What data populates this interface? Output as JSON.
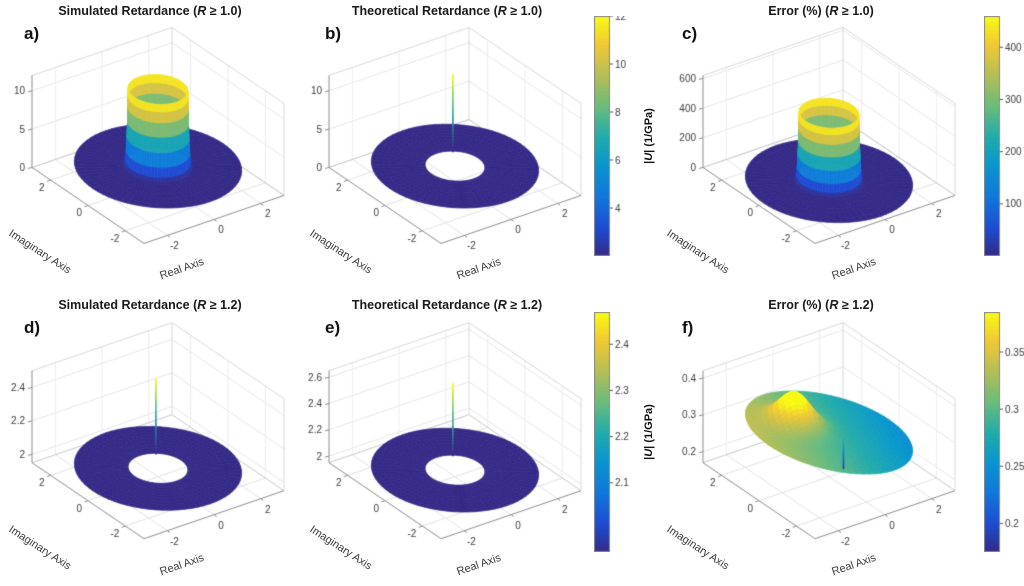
{
  "chart_data": {
    "type": "3d-surface-grid",
    "colormap": {
      "name": "parula",
      "stops": [
        {
          "t": 0.0,
          "c": "#352a87"
        },
        {
          "t": 0.12,
          "c": "#1e4dd3"
        },
        {
          "t": 0.25,
          "c": "#1178dc"
        },
        {
          "t": 0.38,
          "c": "#0997cf"
        },
        {
          "t": 0.5,
          "c": "#23acaa"
        },
        {
          "t": 0.62,
          "c": "#68bc7e"
        },
        {
          "t": 0.75,
          "c": "#b4be59"
        },
        {
          "t": 0.88,
          "c": "#f0c934"
        },
        {
          "t": 1.0,
          "c": "#f9fb14"
        }
      ]
    },
    "panels": [
      {
        "letter": "a)",
        "title_pre": "Simulated Retardance (",
        "title_r": "R",
        "title_post": " ≥ 1.0)",
        "xlabel": "Real Axis",
        "ylabel": "Imaginary Axis",
        "xticks": [
          {
            "v": -2,
            "t": "-2"
          },
          {
            "v": 0,
            "t": "0"
          },
          {
            "v": 2,
            "t": "2"
          }
        ],
        "yticks": [
          {
            "v": -2,
            "t": "-2"
          },
          {
            "v": 0,
            "t": "0"
          },
          {
            "v": 2,
            "t": "2"
          }
        ],
        "zticks": [
          {
            "v": 0,
            "t": "0"
          },
          {
            "v": 5,
            "t": "5"
          },
          {
            "v": 10,
            "t": "10"
          }
        ],
        "zlim": [
          0,
          12
        ],
        "clim": [
          2,
          12
        ],
        "surface": {
          "type": "annulus_wall",
          "r_inner": 1.0,
          "r_outer": 2.8,
          "base": 2.0,
          "peak": 12.0,
          "decay": 0.035
        }
      },
      {
        "letter": "b)",
        "title_pre": "Theoretical Retardance (",
        "title_r": "R",
        "title_post": " ≥ 1.0)",
        "xlabel": "Real Axis",
        "ylabel": "Imaginary Axis",
        "xticks": [
          {
            "v": -2,
            "t": "-2"
          },
          {
            "v": 0,
            "t": "0"
          },
          {
            "v": 2,
            "t": "2"
          }
        ],
        "yticks": [
          {
            "v": -2,
            "t": "-2"
          },
          {
            "v": 0,
            "t": "0"
          },
          {
            "v": 2,
            "t": "2"
          }
        ],
        "zticks": [
          {
            "v": 0,
            "t": "0"
          },
          {
            "v": 5,
            "t": "5"
          },
          {
            "v": 10,
            "t": "10"
          }
        ],
        "zlim": [
          0,
          12
        ],
        "clim": [
          2,
          12
        ],
        "surface": {
          "type": "annulus_flat_spike",
          "r_inner": 1.0,
          "r_outer": 2.8,
          "base": 2.0,
          "spike_peak": 12.0,
          "spike_x": 0.55,
          "spike_y": 0.8
        }
      },
      {
        "letter": "c)",
        "title_pre": "Error (%) (",
        "title_r": "R",
        "title_post": " ≥ 1.0)",
        "xlabel": "Real Axis",
        "ylabel": "Imaginary Axis",
        "xticks": [
          {
            "v": -2,
            "t": "-2"
          },
          {
            "v": 0,
            "t": "0"
          },
          {
            "v": 2,
            "t": "2"
          }
        ],
        "yticks": [
          {
            "v": -2,
            "t": "-2"
          },
          {
            "v": 0,
            "t": "0"
          },
          {
            "v": 2,
            "t": "2"
          }
        ],
        "zticks": [
          {
            "v": 0,
            "t": "0"
          },
          {
            "v": 200,
            "t": "200"
          },
          {
            "v": 400,
            "t": "400"
          },
          {
            "v": 600,
            "t": "600"
          }
        ],
        "zlim": [
          0,
          620
        ],
        "clim": [
          5,
          460
        ],
        "surface": {
          "type": "annulus_wall",
          "r_inner": 1.0,
          "r_outer": 2.8,
          "base": 5.0,
          "peak": 460.0,
          "decay": 0.035
        }
      },
      {
        "letter": "d)",
        "title_pre": "Simulated Retardance (",
        "title_r": "R",
        "title_post": " ≥ 1.2)",
        "xlabel": "Real Axis",
        "ylabel": "Imaginary Axis",
        "xticks": [
          {
            "v": -2,
            "t": "-2"
          },
          {
            "v": 0,
            "t": "0"
          },
          {
            "v": 2,
            "t": "2"
          }
        ],
        "yticks": [
          {
            "v": -2,
            "t": "-2"
          },
          {
            "v": 0,
            "t": "0"
          },
          {
            "v": 2,
            "t": "2"
          }
        ],
        "zticks": [
          {
            "v": 2,
            "t": "2"
          },
          {
            "v": 2.2,
            "t": "2.2"
          },
          {
            "v": 2.4,
            "t": "2.4"
          }
        ],
        "zlim": [
          1.95,
          2.5
        ],
        "clim": [
          2,
          2.45
        ],
        "surface": {
          "type": "annulus_flat_spike",
          "r_inner": 1.0,
          "r_outer": 2.8,
          "base": 2.0,
          "spike_peak": 2.45,
          "spike_x": 0.55,
          "spike_y": 0.8
        }
      },
      {
        "letter": "e)",
        "title_pre": "Theoretical Retardance (",
        "title_r": "R",
        "title_post": " ≥ 1.2)",
        "xlabel": "Real Axis",
        "ylabel": "Imaginary Axis",
        "xticks": [
          {
            "v": -2,
            "t": "-2"
          },
          {
            "v": 0,
            "t": "0"
          },
          {
            "v": 2,
            "t": "2"
          }
        ],
        "yticks": [
          {
            "v": -2,
            "t": "-2"
          },
          {
            "v": 0,
            "t": "0"
          },
          {
            "v": 2,
            "t": "2"
          }
        ],
        "zticks": [
          {
            "v": 2,
            "t": "2"
          },
          {
            "v": 2.2,
            "t": "2.2"
          },
          {
            "v": 2.4,
            "t": "2.4"
          },
          {
            "v": 2.6,
            "t": "2.6"
          }
        ],
        "zlim": [
          1.95,
          2.65
        ],
        "clim": [
          2,
          2.5
        ],
        "surface": {
          "type": "annulus_flat_spike",
          "r_inner": 1.0,
          "r_outer": 2.8,
          "base": 2.0,
          "spike_peak": 2.55,
          "spike_x": 0.55,
          "spike_y": 0.8
        }
      },
      {
        "letter": "f)",
        "title_pre": "Error (%) (",
        "title_r": "R",
        "title_post": " ≥ 1.2)",
        "xlabel": "Real Axis",
        "ylabel": "Imaginary Axis",
        "xticks": [
          {
            "v": -2,
            "t": "-2"
          },
          {
            "v": 0,
            "t": "0"
          },
          {
            "v": 2,
            "t": "2"
          }
        ],
        "yticks": [
          {
            "v": -2,
            "t": "-2"
          },
          {
            "v": 0,
            "t": "0"
          },
          {
            "v": 2,
            "t": "2"
          }
        ],
        "zticks": [
          {
            "v": 0.2,
            "t": "0.2"
          },
          {
            "v": 0.3,
            "t": "0.3"
          },
          {
            "v": 0.4,
            "t": "0.4"
          }
        ],
        "zlim": [
          0.17,
          0.42
        ],
        "clim": [
          0.19,
          0.37
        ],
        "surface": {
          "type": "tilted_disk",
          "r_outer": 2.8,
          "c0": 0.29,
          "gx": -0.013,
          "gy": 0.005,
          "bump": {
            "x": -0.8,
            "y": 0.8,
            "amp": 0.085,
            "sigma": 0.55
          },
          "dip": {
            "x": 0.3,
            "y": -0.4,
            "to": 0.2
          }
        }
      }
    ],
    "colorbars": [
      {
        "range": [
          2,
          12
        ],
        "ticks": [
          {
            "v": 4,
            "t": "4"
          },
          {
            "v": 6,
            "t": "6"
          },
          {
            "v": 8,
            "t": "8"
          },
          {
            "v": 10,
            "t": "10"
          },
          {
            "v": 12,
            "t": "12"
          }
        ],
        "label_pre": "|",
        "label_u": "U",
        "label_post": "| (1/GPa)"
      },
      {
        "range": [
          0,
          460
        ],
        "ticks": [
          {
            "v": 100,
            "t": "100"
          },
          {
            "v": 200,
            "t": "200"
          },
          {
            "v": 300,
            "t": "300"
          },
          {
            "v": 400,
            "t": "400"
          }
        ]
      },
      {
        "range": [
          1.95,
          2.47
        ],
        "ticks": [
          {
            "v": 2.1,
            "t": "2.1"
          },
          {
            "v": 2.2,
            "t": "2.2"
          },
          {
            "v": 2.3,
            "t": "2.3"
          },
          {
            "v": 2.4,
            "t": "2.4"
          }
        ],
        "label_pre": "|",
        "label_u": "U",
        "label_post": "| (1/GPa)"
      },
      {
        "range": [
          0.175,
          0.385
        ],
        "ticks": [
          {
            "v": 0.2,
            "t": "0.2"
          },
          {
            "v": 0.25,
            "t": "0.25"
          },
          {
            "v": 0.3,
            "t": "0.3"
          },
          {
            "v": 0.35,
            "t": "0.35"
          }
        ]
      }
    ]
  }
}
